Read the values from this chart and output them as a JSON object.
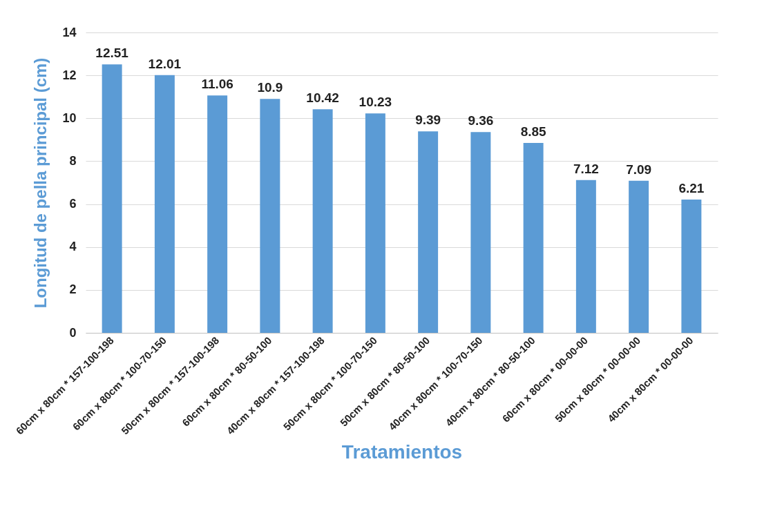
{
  "chart_data": {
    "type": "bar",
    "xlabel": "Tratamientos",
    "ylabel": "Longitud de pella principal (cm)",
    "categories": [
      "60cm x 80cm * 157-100-198",
      "60cm x 80cm * 100-70-150",
      "50cm x 80cm * 157-100-198",
      "60cm x 80cm * 80-50-100",
      "40cm x 80cm * 157-100-198",
      "50cm x 80cm * 100-70-150",
      "50cm x 80cm * 80-50-100",
      "40cm x 80cm * 100-70-150",
      "40cm x 80cm * 80-50-100",
      "60cm x 80cm * 00-00-00",
      "50cm x 80cm * 00-00-00",
      "40cm x 80cm * 00-00-00"
    ],
    "values": [
      12.51,
      12.01,
      11.06,
      10.9,
      10.42,
      10.23,
      9.39,
      9.36,
      8.85,
      7.12,
      7.09,
      6.21
    ],
    "color": "#5b9bd5",
    "ylim": [
      0,
      14
    ],
    "yticks": [
      0,
      2,
      4,
      6,
      8,
      10,
      12,
      14
    ],
    "grid": "y",
    "data_labels": true
  }
}
